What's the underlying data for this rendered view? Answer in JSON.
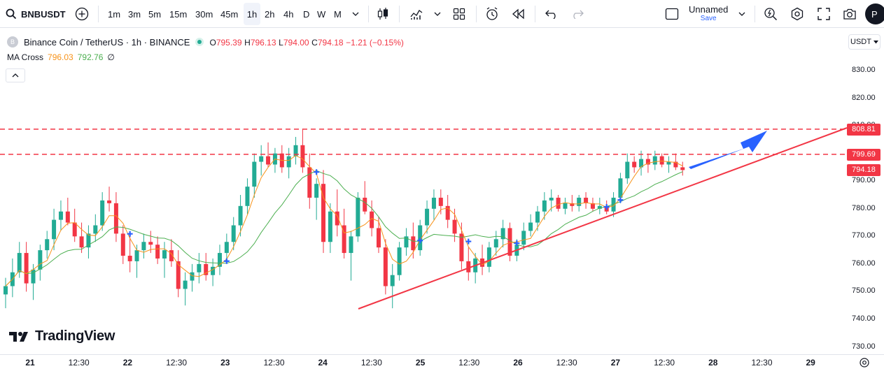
{
  "toolbar": {
    "symbol": "BNBUSDT",
    "intervals": [
      "1m",
      "3m",
      "5m",
      "15m",
      "30m",
      "45m",
      "1h",
      "2h",
      "4h",
      "D",
      "W",
      "M"
    ],
    "active_interval": "1h",
    "layout_name": "Unnamed",
    "save_label": "Save",
    "avatar_initial": "P"
  },
  "legend": {
    "title": "Binance Coin / TetherUS · 1h · BINANCE",
    "o_key": "O",
    "o_val": "795.39",
    "h_key": "H",
    "h_val": "796.13",
    "l_key": "L",
    "l_val": "794.00",
    "c_key": "C",
    "c_val": "794.18",
    "change": "−1.21 (−0.15%)",
    "indicator_name": "MA Cross",
    "ma_fast": "796.03",
    "ma_slow": "792.76",
    "empty_symbol": "∅"
  },
  "price_axis": {
    "currency": "USDT",
    "labels": [
      "830.00",
      "820.00",
      "810.00",
      "800.00",
      "790.00",
      "780.00",
      "770.00",
      "760.00",
      "750.00",
      "740.00",
      "730.00"
    ],
    "tags": [
      {
        "label": "808.81",
        "color": "#f23645"
      },
      {
        "label": "799.69",
        "color": "#f23645"
      },
      {
        "label": "794.18",
        "color": "#f23645"
      }
    ]
  },
  "time_axis": {
    "labels": [
      "21",
      "12:30",
      "22",
      "12:30",
      "23",
      "12:30",
      "24",
      "12:30",
      "25",
      "12:30",
      "26",
      "12:30",
      "27",
      "12:30",
      "28",
      "12:30",
      "29"
    ]
  },
  "watermark": "TradingView",
  "colors": {
    "up": "#22ab94",
    "down": "#f23645",
    "ma_fast": "#f7931a",
    "ma_slow": "#4caf50",
    "trendline": "#f23645",
    "arrow": "#2962ff",
    "cross": "#2962ff"
  },
  "chart_data": {
    "type": "candlestick",
    "price_range": [
      730,
      832
    ],
    "resistance_levels": [
      808.81,
      799.69
    ],
    "last_price": 794.18,
    "candles": [
      [
        749,
        755,
        744,
        752
      ],
      [
        752,
        762,
        748,
        757
      ],
      [
        757,
        768,
        755,
        764
      ],
      [
        764,
        768,
        750,
        753
      ],
      [
        753,
        760,
        747,
        758
      ],
      [
        758,
        767,
        754,
        765
      ],
      [
        765,
        772,
        762,
        769
      ],
      [
        769,
        780,
        765,
        776
      ],
      [
        776,
        783,
        772,
        779
      ],
      [
        779,
        784,
        774,
        775
      ],
      [
        775,
        780,
        768,
        770
      ],
      [
        770,
        775,
        764,
        766
      ],
      [
        766,
        774,
        762,
        771
      ],
      [
        771,
        778,
        768,
        774
      ],
      [
        774,
        786,
        772,
        783
      ],
      [
        783,
        788,
        779,
        782
      ],
      [
        782,
        786,
        768,
        771
      ],
      [
        771,
        774,
        760,
        763
      ],
      [
        763,
        770,
        757,
        761
      ],
      [
        761,
        767,
        755,
        765
      ],
      [
        765,
        771,
        762,
        768
      ],
      [
        768,
        772,
        764,
        767
      ],
      [
        767,
        770,
        760,
        762
      ],
      [
        762,
        768,
        755,
        765
      ],
      [
        765,
        769,
        759,
        761
      ],
      [
        761,
        765,
        748,
        751
      ],
      [
        751,
        757,
        745,
        754
      ],
      [
        754,
        760,
        750,
        757
      ],
      [
        757,
        764,
        753,
        760
      ],
      [
        760,
        764,
        754,
        756
      ],
      [
        756,
        762,
        752,
        759
      ],
      [
        759,
        767,
        756,
        764
      ],
      [
        764,
        771,
        761,
        768
      ],
      [
        768,
        777,
        765,
        774
      ],
      [
        774,
        785,
        770,
        781
      ],
      [
        781,
        791,
        778,
        788
      ],
      [
        788,
        800,
        784,
        797
      ],
      [
        797,
        803,
        792,
        799
      ],
      [
        799,
        804,
        795,
        796
      ],
      [
        796,
        802,
        793,
        800
      ],
      [
        800,
        803,
        793,
        795
      ],
      [
        795,
        802,
        791,
        799
      ],
      [
        799,
        806,
        796,
        803
      ],
      [
        803,
        809,
        793,
        795
      ],
      [
        795,
        800,
        780,
        784
      ],
      [
        784,
        791,
        776,
        789
      ],
      [
        789,
        794,
        764,
        768
      ],
      [
        768,
        782,
        764,
        779
      ],
      [
        779,
        787,
        770,
        774
      ],
      [
        774,
        780,
        762,
        764
      ],
      [
        764,
        772,
        754,
        770
      ],
      [
        770,
        786,
        768,
        784
      ],
      [
        784,
        790,
        778,
        779
      ],
      [
        779,
        783,
        770,
        773
      ],
      [
        773,
        777,
        764,
        766
      ],
      [
        766,
        769,
        749,
        752
      ],
      [
        752,
        760,
        744,
        756
      ],
      [
        756,
        768,
        754,
        766
      ],
      [
        766,
        773,
        763,
        770
      ],
      [
        770,
        775,
        762,
        765
      ],
      [
        765,
        776,
        763,
        774
      ],
      [
        774,
        783,
        771,
        780
      ],
      [
        780,
        787,
        776,
        784
      ],
      [
        784,
        787,
        778,
        781
      ],
      [
        781,
        785,
        773,
        776
      ],
      [
        776,
        780,
        768,
        771
      ],
      [
        771,
        775,
        758,
        761
      ],
      [
        761,
        766,
        754,
        757
      ],
      [
        757,
        764,
        753,
        762
      ],
      [
        762,
        767,
        756,
        759
      ],
      [
        759,
        768,
        757,
        766
      ],
      [
        766,
        772,
        763,
        769
      ],
      [
        769,
        776,
        766,
        773
      ],
      [
        773,
        775,
        761,
        763
      ],
      [
        763,
        769,
        761,
        767
      ],
      [
        767,
        775,
        765,
        772
      ],
      [
        772,
        778,
        770,
        775
      ],
      [
        775,
        781,
        772,
        779
      ],
      [
        779,
        786,
        776,
        783
      ],
      [
        783,
        787,
        779,
        784
      ],
      [
        784,
        785,
        779,
        780
      ],
      [
        780,
        784,
        778,
        782
      ],
      [
        782,
        785,
        779,
        781
      ],
      [
        781,
        785,
        779,
        784
      ],
      [
        784,
        786,
        780,
        782
      ],
      [
        782,
        784,
        779,
        780
      ],
      [
        780,
        784,
        778,
        781
      ],
      [
        781,
        783,
        778,
        779
      ],
      [
        779,
        786,
        777,
        784
      ],
      [
        784,
        793,
        782,
        791
      ],
      [
        791,
        800,
        789,
        797
      ],
      [
        797,
        799,
        793,
        795
      ],
      [
        795,
        801,
        792,
        798
      ],
      [
        798,
        800,
        793,
        796
      ],
      [
        796,
        801,
        794,
        799
      ],
      [
        799,
        800,
        795,
        796
      ],
      [
        796,
        799,
        793,
        797
      ],
      [
        797,
        800,
        794,
        795
      ],
      [
        795,
        797,
        792,
        794
      ]
    ]
  }
}
